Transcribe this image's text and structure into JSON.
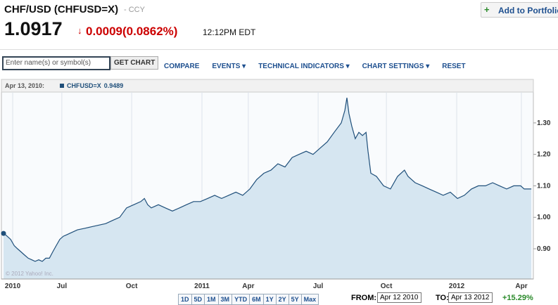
{
  "header": {
    "symbol": "CHF/USD (CHFUSD=X)",
    "exchange": "- CCY",
    "price": "1.0917",
    "change": "0.0009(0.0862%)",
    "time": "12:12PM EDT",
    "portfolio_button": "Add to Portfolio"
  },
  "toolbar": {
    "search_placeholder": "Enter name(s) or symbol(s)",
    "get_chart": "GET CHART",
    "menu": [
      "COMPARE",
      "EVENTS ▾",
      "TECHNICAL INDICATORS ▾",
      "CHART SETTINGS ▾",
      "RESET"
    ]
  },
  "chart_data": {
    "type": "area",
    "hover_date": "Apr 13, 2010:",
    "hover_value": 0.9489,
    "copyright": "© 2012 Yahoo! Inc.",
    "grid": "x",
    "fill_color": "#d6e6f1",
    "xlim": [
      2010.221,
      2012.301
    ],
    "ylim": [
      0.804,
      1.398
    ],
    "xticks": [
      {
        "value": 2010.257,
        "label": "2010"
      },
      {
        "value": 2010.45,
        "label": "Jul"
      },
      {
        "value": 2010.724,
        "label": "Oct"
      },
      2011,
      {
        "value": 2011.182,
        "label": "Apr"
      },
      {
        "value": 2011.456,
        "label": "Jul"
      },
      {
        "value": 2011.724,
        "label": "Oct"
      },
      2012,
      {
        "value": 2012.254,
        "label": "Apr"
      }
    ],
    "yticks": [
      {
        "value": 0.9,
        "label": "0.90"
      },
      {
        "value": 1.0,
        "label": "1.00"
      },
      {
        "value": 1.1,
        "label": "1.10"
      },
      {
        "value": 1.2,
        "label": "1.20"
      },
      {
        "value": 1.3,
        "label": "1.30"
      }
    ],
    "x": [
      2010.221,
      2010.235,
      2010.249,
      2010.263,
      2010.276,
      2010.29,
      2010.304,
      2010.318,
      2010.332,
      2010.345,
      2010.359,
      2010.373,
      2010.387,
      2010.401,
      2010.414,
      2010.428,
      2010.442,
      2010.456,
      2010.47,
      2010.484,
      2010.511,
      2010.539,
      2010.566,
      2010.594,
      2010.622,
      2010.649,
      2010.677,
      2010.704,
      2010.732,
      2010.76,
      2010.774,
      2010.787,
      2010.801,
      2010.829,
      2010.856,
      2010.884,
      2010.912,
      2010.939,
      2010.967,
      2010.994,
      2011.022,
      2011.05,
      2011.077,
      2011.105,
      2011.133,
      2011.16,
      2011.188,
      2011.215,
      2011.243,
      2011.271,
      2011.298,
      2011.326,
      2011.354,
      2011.381,
      2011.409,
      2011.436,
      2011.464,
      2011.492,
      2011.519,
      2011.547,
      2011.561,
      2011.569,
      2011.577,
      2011.588,
      2011.602,
      2011.616,
      2011.63,
      2011.644,
      2011.652,
      2011.663,
      2011.685,
      2011.713,
      2011.74,
      2011.768,
      2011.795,
      2011.809,
      2011.837,
      2011.865,
      2011.892,
      2011.92,
      2011.947,
      2011.975,
      2012.003,
      2012.03,
      2012.058,
      2012.085,
      2012.113,
      2012.141,
      2012.168,
      2012.196,
      2012.224,
      2012.251,
      2012.265,
      2012.293
    ],
    "series": [
      {
        "name": "CHFUSD=X",
        "color": "#1f4f7a",
        "values": [
          0.95,
          0.94,
          0.93,
          0.91,
          0.9,
          0.89,
          0.88,
          0.87,
          0.865,
          0.86,
          0.865,
          0.86,
          0.87,
          0.87,
          0.89,
          0.91,
          0.93,
          0.94,
          0.945,
          0.95,
          0.96,
          0.965,
          0.97,
          0.975,
          0.98,
          0.99,
          1.0,
          1.03,
          1.04,
          1.05,
          1.06,
          1.04,
          1.03,
          1.04,
          1.03,
          1.02,
          1.03,
          1.04,
          1.05,
          1.05,
          1.06,
          1.07,
          1.06,
          1.07,
          1.08,
          1.07,
          1.09,
          1.12,
          1.14,
          1.15,
          1.17,
          1.16,
          1.19,
          1.2,
          1.21,
          1.2,
          1.22,
          1.24,
          1.27,
          1.3,
          1.34,
          1.38,
          1.33,
          1.29,
          1.25,
          1.27,
          1.26,
          1.27,
          1.21,
          1.14,
          1.13,
          1.1,
          1.09,
          1.13,
          1.15,
          1.13,
          1.11,
          1.1,
          1.09,
          1.08,
          1.07,
          1.08,
          1.06,
          1.07,
          1.09,
          1.1,
          1.1,
          1.11,
          1.1,
          1.09,
          1.1,
          1.1,
          1.09,
          1.09
        ]
      }
    ]
  },
  "controls": {
    "ranges": [
      "1D",
      "5D",
      "1M",
      "3M",
      "YTD",
      "6M",
      "1Y",
      "2Y",
      "5Y",
      "Max"
    ],
    "from_label": "FROM:",
    "from": "Apr 12 2010",
    "to_label": "TO:",
    "to": "Apr 13 2012",
    "change": "+15.29%"
  }
}
